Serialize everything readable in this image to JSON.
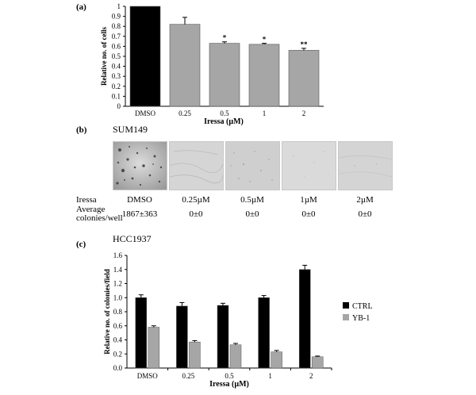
{
  "chart_data": [
    {
      "panel_label": "(a)",
      "type": "bar",
      "categories": [
        "DMSO",
        "0.25",
        "0.5",
        "1",
        "2"
      ],
      "values": [
        1.0,
        0.82,
        0.63,
        0.62,
        0.56
      ],
      "errors": [
        0.0,
        0.07,
        0.015,
        0.01,
        0.02
      ],
      "significance": [
        "",
        "",
        "*",
        "*",
        "**"
      ],
      "bar_colors": [
        "#000000",
        "#a6a6a6",
        "#a6a6a6",
        "#a6a6a6",
        "#a6a6a6"
      ],
      "yticks": [
        "0",
        "0.1",
        "0.2",
        "0.3",
        "0.4",
        "0.5",
        "0.6",
        "0.7",
        "0.8",
        "0.9",
        "1"
      ],
      "ylim": [
        0,
        1
      ],
      "xlabel": "Iressa (µM)",
      "ylabel": "Relative no. of cells",
      "grid": false
    },
    {
      "panel_label": "(c)",
      "type": "bar",
      "title": "HCC1937",
      "categories": [
        "DMSO",
        "0.25",
        "0.5",
        "1",
        "2"
      ],
      "series": [
        {
          "name": "CTRL",
          "color": "#000000",
          "values": [
            1.0,
            0.88,
            0.89,
            1.0,
            1.4
          ],
          "errors": [
            0.04,
            0.05,
            0.03,
            0.03,
            0.06
          ]
        },
        {
          "name": "YB-1",
          "color": "#a6a6a6",
          "values": [
            0.58,
            0.37,
            0.33,
            0.23,
            0.16
          ],
          "errors": [
            0.02,
            0.02,
            0.02,
            0.02,
            0.01
          ]
        }
      ],
      "yticks": [
        "0.0",
        "0.2",
        "0.4",
        "0.6",
        "0.8",
        "1.0",
        "1.2",
        "1.4",
        "1.6"
      ],
      "ylim": [
        0,
        1.6
      ],
      "xlabel": "Iressa (µM)",
      "ylabel": "Relative no. of colonies/field",
      "legend_position": "right",
      "grid": false
    }
  ],
  "panel_b": {
    "panel_label": "(b)",
    "cell_line": "SUM149",
    "row_iressa_label": "Iressa",
    "row_avg_label_line1": "Average",
    "row_avg_label_line2": "colonies/well",
    "doses": [
      "DMSO",
      "0.25µM",
      "0.5µM",
      "1µM",
      "2µM"
    ],
    "colonies": [
      "1867±363",
      "0±0",
      "0±0",
      "0±0",
      "0±0"
    ]
  }
}
